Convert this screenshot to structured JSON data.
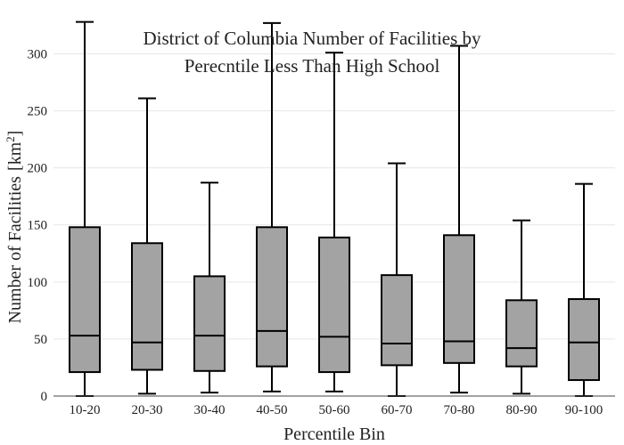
{
  "chart_data": {
    "type": "box",
    "title_lines": [
      "District of Columbia Number of Facilities by",
      "Perecntile Less Than High School"
    ],
    "xlabel": "Percentile Bin",
    "ylabel": "Number of Facilities",
    "ylabel_unit_base": "[km",
    "ylabel_unit_sup": "2",
    "ylabel_unit_end": "]",
    "ylim": [
      0,
      330
    ],
    "yticks": [
      0,
      50,
      100,
      150,
      200,
      250,
      300
    ],
    "grid": true,
    "box_color": "#a3a3a3",
    "categories": [
      "10-20",
      "20-30",
      "30-40",
      "40-50",
      "50-60",
      "60-70",
      "70-80",
      "80-90",
      "90-100"
    ],
    "boxes": [
      {
        "min": 0,
        "q1": 21,
        "median": 53,
        "q3": 148,
        "max": 328
      },
      {
        "min": 2,
        "q1": 23,
        "median": 47,
        "q3": 134,
        "max": 261
      },
      {
        "min": 3,
        "q1": 22,
        "median": 53,
        "q3": 105,
        "max": 187
      },
      {
        "min": 4,
        "q1": 26,
        "median": 57,
        "q3": 148,
        "max": 327
      },
      {
        "min": 4,
        "q1": 21,
        "median": 52,
        "q3": 139,
        "max": 301
      },
      {
        "min": 0,
        "q1": 27,
        "median": 46,
        "q3": 106,
        "max": 204
      },
      {
        "min": 3,
        "q1": 29,
        "median": 48,
        "q3": 141,
        "max": 307
      },
      {
        "min": 2,
        "q1": 26,
        "median": 42,
        "q3": 84,
        "max": 154
      },
      {
        "min": 0,
        "q1": 14,
        "median": 47,
        "q3": 85,
        "max": 186
      }
    ]
  }
}
